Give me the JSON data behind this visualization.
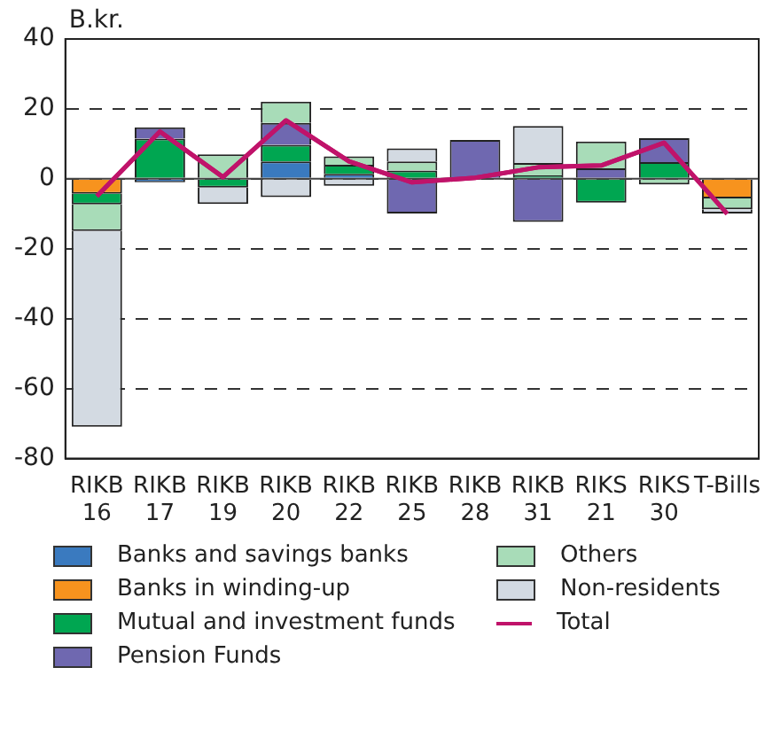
{
  "chart_data": {
    "type": "bar",
    "stacked": true,
    "ylabel": "B.kr.",
    "categories": [
      "RIKB 16",
      "RIKB 17",
      "RIKB 19",
      "RIKB 20",
      "RIKB 22",
      "RIKB 25",
      "RIKB 28",
      "RIKB 31",
      "RIKS 21",
      "RIKS 30",
      "T-Bills"
    ],
    "series": [
      {
        "name": "Banks and savings banks",
        "color": "#3a7abf",
        "values": [
          null,
          -1,
          null,
          5,
          1.4,
          null,
          null,
          null,
          null,
          null,
          null
        ]
      },
      {
        "name": "Banks in winding-up",
        "color": "#f7931e",
        "values": [
          -4.3,
          null,
          null,
          null,
          null,
          null,
          null,
          null,
          null,
          null,
          -5.6
        ]
      },
      {
        "name": "Mutual and investment funds",
        "color": "#00a651",
        "values": [
          -3,
          11.5,
          -2.5,
          4.7,
          2.6,
          2.4,
          null,
          1,
          -6.8,
          4.8,
          null
        ]
      },
      {
        "name": "Pension Funds",
        "color": "#6f68b0",
        "values": [
          null,
          3.2,
          null,
          6.3,
          null,
          -9.9,
          11.1,
          -12.3,
          3,
          6.8,
          null
        ]
      },
      {
        "name": "Others",
        "color": "#a8dcb8",
        "values": [
          -7.6,
          null,
          7,
          6.1,
          2.4,
          2.6,
          null,
          3.5,
          7.7,
          -1.6,
          -3.1
        ]
      },
      {
        "name": "Non-residents",
        "color": "#d3dae2",
        "values": [
          -56,
          null,
          -4.7,
          -5.2,
          -2,
          3.7,
          null,
          10.6,
          null,
          null,
          -1.2
        ]
      },
      {
        "name": "Total",
        "type": "line",
        "color": "#c0136a",
        "values": [
          -5,
          13.5,
          0.5,
          16.7,
          5,
          -1,
          0.3,
          3.3,
          3.8,
          10.3,
          -10
        ]
      }
    ],
    "ylim": [
      -80,
      40
    ],
    "yticks": [
      -80,
      -60,
      -40,
      -20,
      0,
      20,
      40
    ],
    "grid": "y",
    "legend": "bottom",
    "marker": "none",
    "ref_lines": [
      {
        "axis": "y",
        "value": 0
      }
    ]
  }
}
